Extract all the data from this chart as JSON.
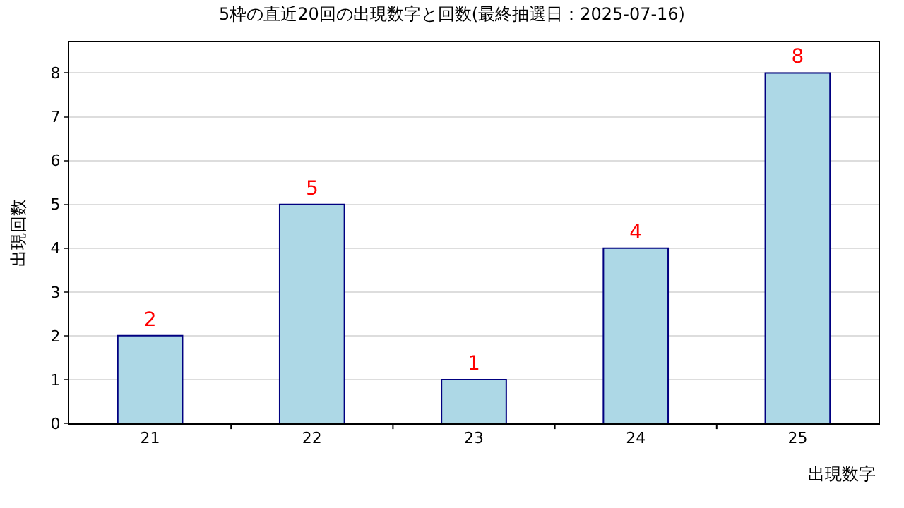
{
  "chart_data": {
    "type": "bar",
    "title": "5枠の直近20回の出現数字と回数(最終抽選日：2025-07-16)",
    "xlabel": "出現数字",
    "ylabel": "出現回数",
    "categories": [
      "21",
      "22",
      "23",
      "24",
      "25"
    ],
    "values": [
      2,
      5,
      1,
      4,
      8
    ],
    "color": "#add8e6",
    "ylim": [
      0,
      8.7
    ],
    "yticks": [
      0,
      1,
      2,
      3,
      4,
      5,
      6,
      7,
      8
    ],
    "grid": "y",
    "data_labels": true,
    "legend": false
  }
}
